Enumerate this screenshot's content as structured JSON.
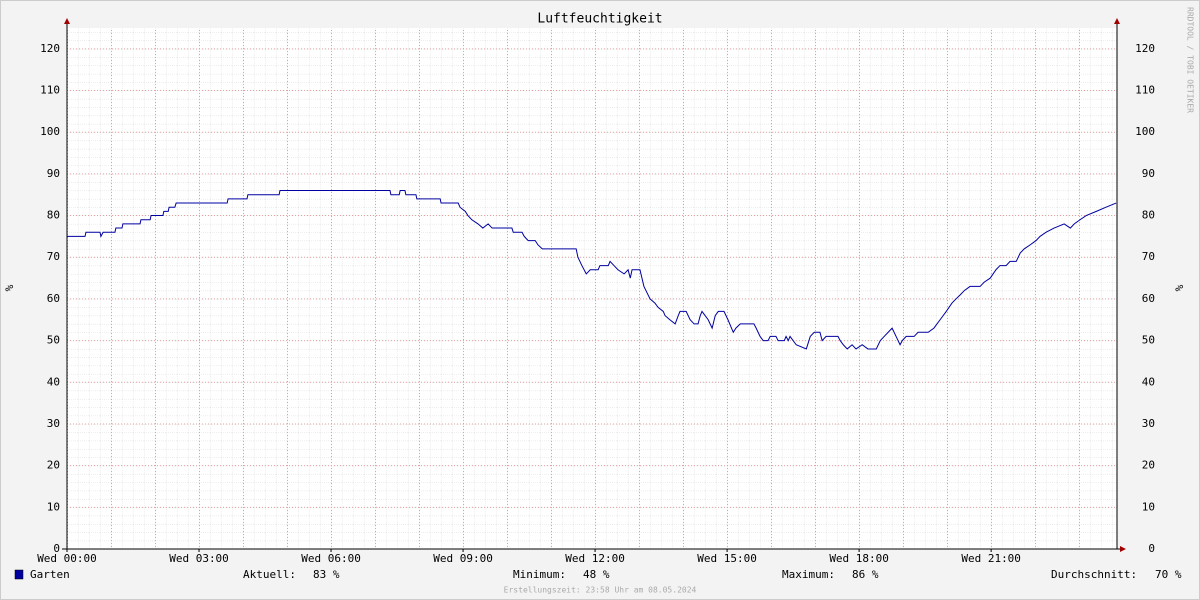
{
  "chart_data": {
    "type": "line",
    "title": "Luftfeuchtigkeit",
    "ylabel": "%",
    "watermark": "RRDTOOL / TOBI OETIKER",
    "footer": "Erstellungszeit: 23:58 Uhr am 08.05.2024",
    "xlim": [
      0,
      23.86
    ],
    "ylim": [
      0,
      125
    ],
    "yticks": [
      0,
      10,
      20,
      30,
      40,
      50,
      60,
      70,
      80,
      90,
      100,
      110,
      120
    ],
    "xticks": [
      {
        "value": 0,
        "label": "Wed 00:00"
      },
      {
        "value": 3,
        "label": "Wed 03:00"
      },
      {
        "value": 6,
        "label": "Wed 06:00"
      },
      {
        "value": 9,
        "label": "Wed 09:00"
      },
      {
        "value": 12,
        "label": "Wed 12:00"
      },
      {
        "value": 15,
        "label": "Wed 15:00"
      },
      {
        "value": 18,
        "label": "Wed 18:00"
      },
      {
        "value": 21,
        "label": "Wed 21:00"
      }
    ],
    "grid": true,
    "series": [
      {
        "name": "Garten",
        "color": "#0000a0",
        "x": [
          0,
          0.41,
          0.43,
          0.75,
          0.77,
          0.82,
          1.09,
          1.11,
          1.25,
          1.27,
          1.66,
          1.68,
          1.89,
          1.91,
          2.18,
          2.2,
          2.3,
          2.32,
          2.45,
          2.48,
          3.64,
          3.66,
          4.09,
          4.11,
          4.82,
          4.84,
          7.34,
          7.36,
          7.55,
          7.57,
          7.68,
          7.7,
          7.93,
          7.95,
          8.48,
          8.5,
          8.89,
          8.93,
          9.05,
          9.11,
          9.2,
          9.34,
          9.45,
          9.57,
          9.66,
          10.11,
          10.14,
          10.34,
          10.39,
          10.48,
          10.64,
          10.7,
          10.8,
          11.57,
          11.61,
          11.7,
          11.8,
          11.89,
          12.07,
          12.11,
          12.3,
          12.34,
          12.43,
          12.52,
          12.66,
          12.75,
          12.8,
          12.84,
          13.02,
          13.11,
          13.25,
          13.36,
          13.43,
          13.55,
          13.59,
          13.7,
          13.82,
          13.89,
          13.93,
          14.07,
          14.16,
          14.25,
          14.34,
          14.39,
          14.43,
          14.57,
          14.66,
          14.73,
          14.8,
          14.93,
          15.02,
          15.14,
          15.2,
          15.3,
          15.61,
          15.66,
          15.75,
          15.82,
          15.93,
          15.98,
          16.11,
          16.16,
          16.3,
          16.34,
          16.39,
          16.43,
          16.57,
          16.8,
          16.89,
          16.98,
          17.11,
          17.16,
          17.25,
          17.52,
          17.57,
          17.64,
          17.73,
          17.84,
          17.93,
          18.07,
          18.2,
          18.39,
          18.48,
          18.57,
          18.66,
          18.75,
          18.84,
          18.93,
          18.98,
          19.07,
          19.25,
          19.34,
          19.57,
          19.7,
          19.84,
          19.98,
          20.11,
          20.2,
          20.3,
          20.39,
          20.52,
          20.75,
          20.84,
          20.98,
          21.11,
          21.2,
          21.34,
          21.43,
          21.57,
          21.66,
          21.75,
          21.89,
          22.02,
          22.11,
          22.25,
          22.43,
          22.66,
          22.8,
          22.89,
          23.02,
          23.16,
          23.39,
          23.61,
          23.84
        ],
        "values": [
          75,
          75,
          76,
          76,
          75,
          76,
          76,
          77,
          77,
          78,
          78,
          79,
          79,
          80,
          80,
          81,
          81,
          82,
          82,
          83,
          83,
          84,
          84,
          85,
          85,
          86,
          86,
          85,
          85,
          86,
          86,
          85,
          85,
          84,
          84,
          83,
          83,
          82,
          81,
          80,
          79,
          78,
          77,
          78,
          77,
          77,
          76,
          76,
          75,
          74,
          74,
          73,
          72,
          72,
          70,
          68,
          66,
          67,
          67,
          68,
          68,
          69,
          68,
          67,
          66,
          67,
          65,
          67,
          67,
          63,
          60,
          59,
          58,
          57,
          56,
          55,
          54,
          56,
          57,
          57,
          55,
          54,
          54,
          56,
          57,
          55,
          53,
          56,
          57,
          57,
          55,
          52,
          53,
          54,
          54,
          53,
          51,
          50,
          50,
          51,
          51,
          50,
          50,
          51,
          50,
          51,
          49,
          48,
          51,
          52,
          52,
          50,
          51,
          51,
          50,
          49,
          48,
          49,
          48,
          49,
          48,
          48,
          50,
          51,
          52,
          53,
          51,
          49,
          50,
          51,
          51,
          52,
          52,
          53,
          55,
          57,
          59,
          60,
          61,
          62,
          63,
          63,
          64,
          65,
          67,
          68,
          68,
          69,
          69,
          71,
          72,
          73,
          74,
          75,
          76,
          77,
          78,
          77,
          78,
          79,
          80,
          81,
          82,
          83
        ]
      }
    ],
    "stats": [
      {
        "label": "Aktuell:",
        "value": "83 %"
      },
      {
        "label": "Minimum:",
        "value": "48 %"
      },
      {
        "label": "Maximum:",
        "value": "86 %"
      },
      {
        "label": "Durchschnitt:",
        "value": "70 %"
      }
    ]
  }
}
